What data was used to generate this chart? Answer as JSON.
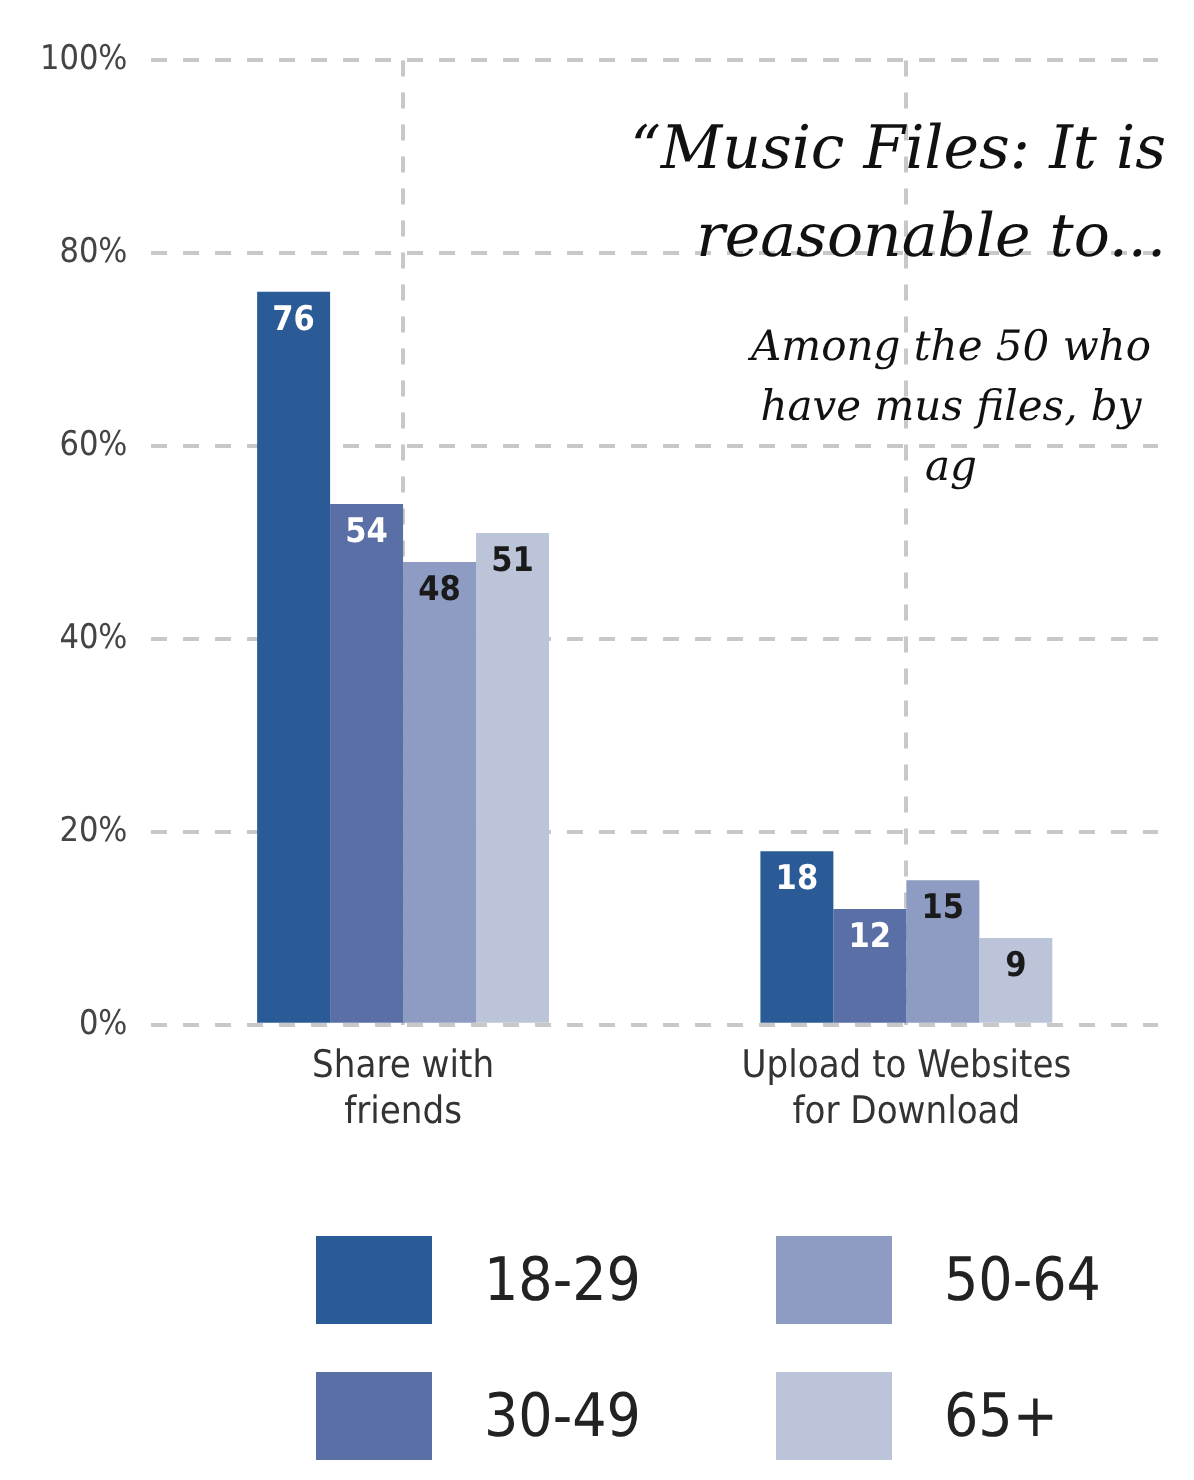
{
  "chart_data": {
    "type": "bar",
    "title": "“Music Files: It is reasonable to...",
    "subtitle": "Among the 50 who have mus files, by ag",
    "categories": [
      "Share with friends",
      "Upload to Websites for Download"
    ],
    "series": [
      {
        "name": "18-29",
        "color": "#2a5b96",
        "values": [
          76,
          18
        ]
      },
      {
        "name": "30-49",
        "color": "#5a6fa5",
        "values": [
          54,
          12
        ]
      },
      {
        "name": "50-64",
        "color": "#8e9bc2",
        "values": [
          48,
          15
        ]
      },
      {
        "name": "65+",
        "color": "#bcc4da",
        "values": [
          51,
          9
        ]
      }
    ],
    "ylim": [
      0,
      100
    ],
    "yticks": [
      {
        "value": 0,
        "label": "0%"
      },
      {
        "value": 20,
        "label": "20%"
      },
      {
        "value": 40,
        "label": "40%"
      },
      {
        "value": 60,
        "label": "60%"
      },
      {
        "value": 80,
        "label": "80%"
      },
      {
        "value": 100,
        "label": "100%"
      }
    ],
    "grid": true,
    "legend": "bottom",
    "data_labels": true
  }
}
